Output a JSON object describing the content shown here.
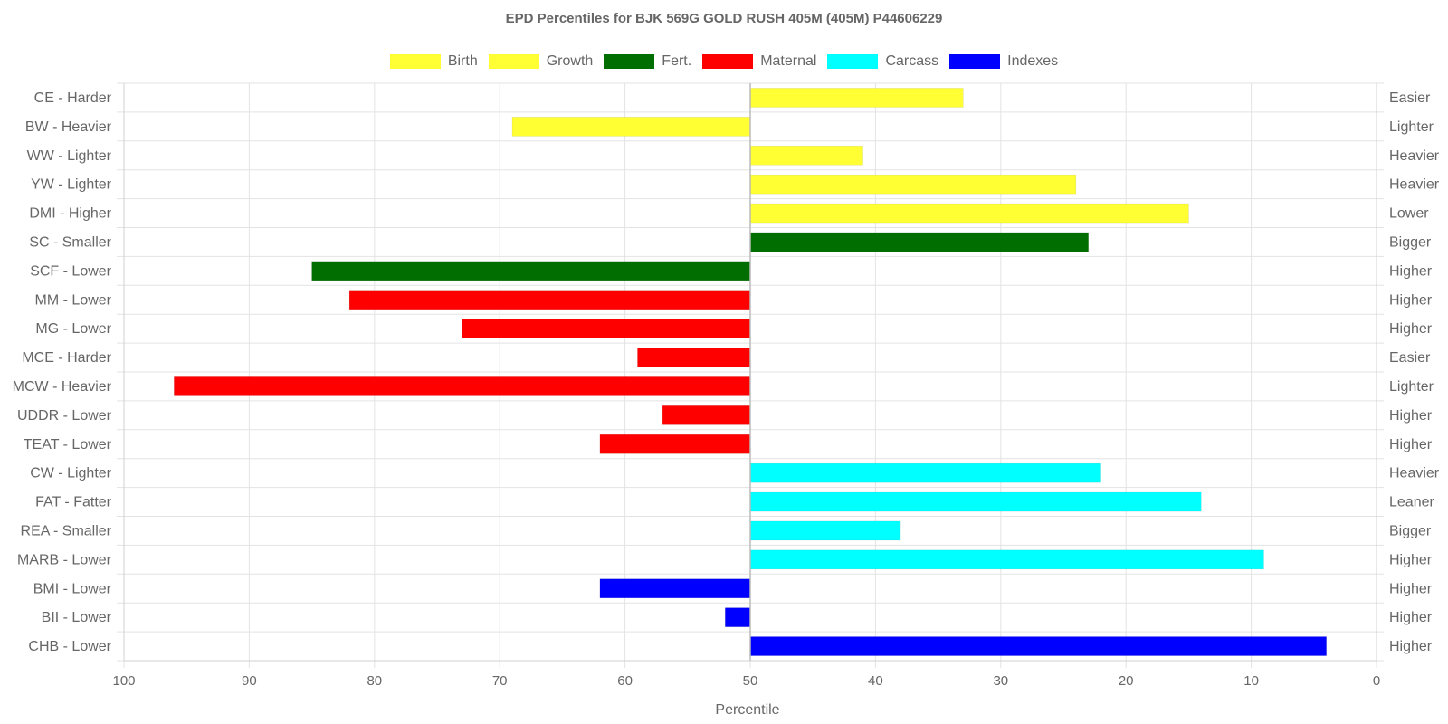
{
  "chart_data": {
    "type": "bar",
    "orientation": "horizontal",
    "title": "EPD Percentiles for BJK 569G GOLD RUSH 405M (405M) P44606229",
    "xlabel": "Percentile",
    "xlim": [
      100,
      0
    ],
    "x_ticks": [
      100,
      90,
      80,
      70,
      60,
      50,
      40,
      30,
      20,
      10,
      0
    ],
    "baseline": 50,
    "grid": true,
    "legend_position": "top",
    "legend": [
      {
        "name": "Birth",
        "color": "#ffff33"
      },
      {
        "name": "Growth",
        "color": "#ffff33"
      },
      {
        "name": "Fert.",
        "color": "#006e00"
      },
      {
        "name": "Maternal",
        "color": "#ff0000"
      },
      {
        "name": "Carcass",
        "color": "#00ffff"
      },
      {
        "name": "Indexes",
        "color": "#0000ff"
      }
    ],
    "categories": [
      "CE - Harder",
      "BW - Heavier",
      "WW - Lighter",
      "YW - Lighter",
      "DMI - Higher",
      "SC - Smaller",
      "SCF - Lower",
      "MM - Lower",
      "MG - Lower",
      "MCE - Harder",
      "MCW - Heavier",
      "UDDR - Lower",
      "TEAT - Lower",
      "CW - Lighter",
      "FAT - Fatter",
      "REA - Smaller",
      "MARB - Lower",
      "BMI - Lower",
      "BII - Lower",
      "CHB - Lower"
    ],
    "right_labels": [
      "Easier",
      "Lighter",
      "Heavier",
      "Heavier",
      "Lower",
      "Bigger",
      "Higher",
      "Higher",
      "Higher",
      "Easier",
      "Lighter",
      "Higher",
      "Higher",
      "Heavier",
      "Leaner",
      "Bigger",
      "Higher",
      "Higher",
      "Higher",
      "Higher"
    ],
    "values": [
      33,
      69,
      41,
      24,
      15,
      23,
      85,
      82,
      73,
      59,
      96,
      57,
      62,
      22,
      14,
      38,
      9,
      62,
      52,
      4
    ],
    "bar_colors": [
      "#ffff33",
      "#ffff33",
      "#ffff33",
      "#ffff33",
      "#ffff33",
      "#006e00",
      "#006e00",
      "#ff0000",
      "#ff0000",
      "#ff0000",
      "#ff0000",
      "#ff0000",
      "#ff0000",
      "#00ffff",
      "#00ffff",
      "#00ffff",
      "#00ffff",
      "#0000ff",
      "#0000ff",
      "#0000ff"
    ]
  }
}
